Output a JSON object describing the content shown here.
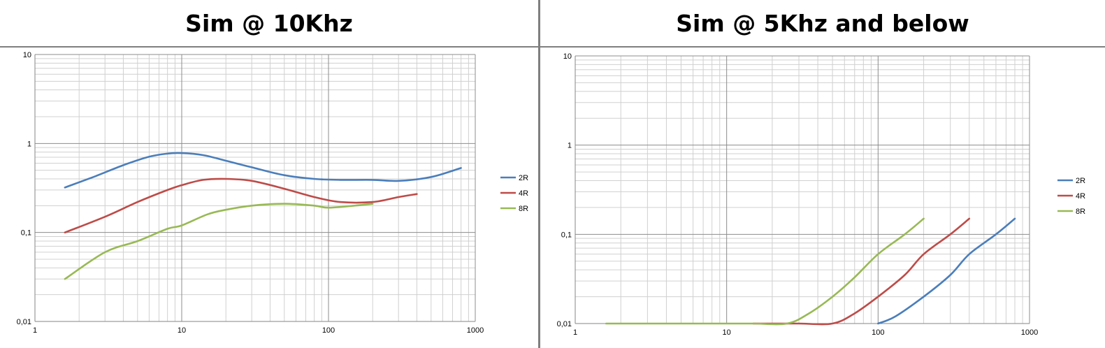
{
  "panels": [
    {
      "title": "Sim @ 10Khz"
    },
    {
      "title": "Sim @ 5Khz and below"
    }
  ],
  "chart_data": [
    {
      "type": "line",
      "title": "Sim @ 10Khz",
      "xscale": "log",
      "yscale": "log",
      "xlim": [
        1,
        1000
      ],
      "ylim": [
        0.01,
        10
      ],
      "x_ticks": [
        "1",
        "10",
        "100",
        "1000"
      ],
      "y_ticks": [
        "0,01",
        "0,1",
        "1",
        "10"
      ],
      "grid": true,
      "legend": "right",
      "series": [
        {
          "name": "2R",
          "color": "#4a7ebb",
          "x": [
            1.6,
            2.5,
            4,
            6,
            8,
            10,
            14,
            20,
            30,
            50,
            80,
            120,
            200,
            300,
            500,
            800
          ],
          "y": [
            0.32,
            0.42,
            0.57,
            0.71,
            0.77,
            0.78,
            0.74,
            0.64,
            0.54,
            0.44,
            0.4,
            0.39,
            0.39,
            0.38,
            0.42,
            0.53
          ]
        },
        {
          "name": "4R",
          "color": "#be4b48",
          "x": [
            1.6,
            3,
            5,
            8,
            10,
            14,
            20,
            30,
            50,
            80,
            120,
            200,
            300,
            400
          ],
          "y": [
            0.1,
            0.15,
            0.22,
            0.3,
            0.34,
            0.39,
            0.4,
            0.38,
            0.31,
            0.25,
            0.22,
            0.22,
            0.25,
            0.27
          ]
        },
        {
          "name": "8R",
          "color": "#98b954",
          "x": [
            1.6,
            3,
            5,
            8,
            10,
            15,
            20,
            30,
            50,
            80,
            100,
            150,
            200
          ],
          "y": [
            0.03,
            0.06,
            0.08,
            0.11,
            0.12,
            0.16,
            0.18,
            0.2,
            0.21,
            0.2,
            0.19,
            0.2,
            0.21
          ]
        }
      ]
    },
    {
      "type": "line",
      "title": "Sim @ 5Khz and below",
      "xscale": "log",
      "yscale": "log",
      "xlim": [
        1,
        1000
      ],
      "ylim": [
        0.01,
        10
      ],
      "x_ticks": [
        "1",
        "10",
        "100",
        "1000"
      ],
      "y_ticks": [
        "0,01",
        "0,1",
        "1",
        "10"
      ],
      "grid": true,
      "legend": "right",
      "series": [
        {
          "name": "2R",
          "color": "#4a7ebb",
          "x": [
            100,
            130,
            200,
            300,
            400,
            600,
            800
          ],
          "y": [
            0.01,
            0.012,
            0.02,
            0.035,
            0.06,
            0.1,
            0.15
          ]
        },
        {
          "name": "4R",
          "color": "#be4b48",
          "x": [
            15,
            20,
            30,
            50,
            70,
            100,
            150,
            200,
            300,
            400
          ],
          "y": [
            0.01,
            0.01,
            0.01,
            0.01,
            0.013,
            0.02,
            0.035,
            0.06,
            0.1,
            0.15
          ]
        },
        {
          "name": "8R",
          "color": "#98b954",
          "x": [
            1.6,
            5,
            10,
            15,
            25,
            35,
            50,
            70,
            100,
            150,
            200
          ],
          "y": [
            0.01,
            0.01,
            0.01,
            0.01,
            0.01,
            0.013,
            0.02,
            0.033,
            0.06,
            0.1,
            0.15
          ]
        }
      ]
    }
  ]
}
